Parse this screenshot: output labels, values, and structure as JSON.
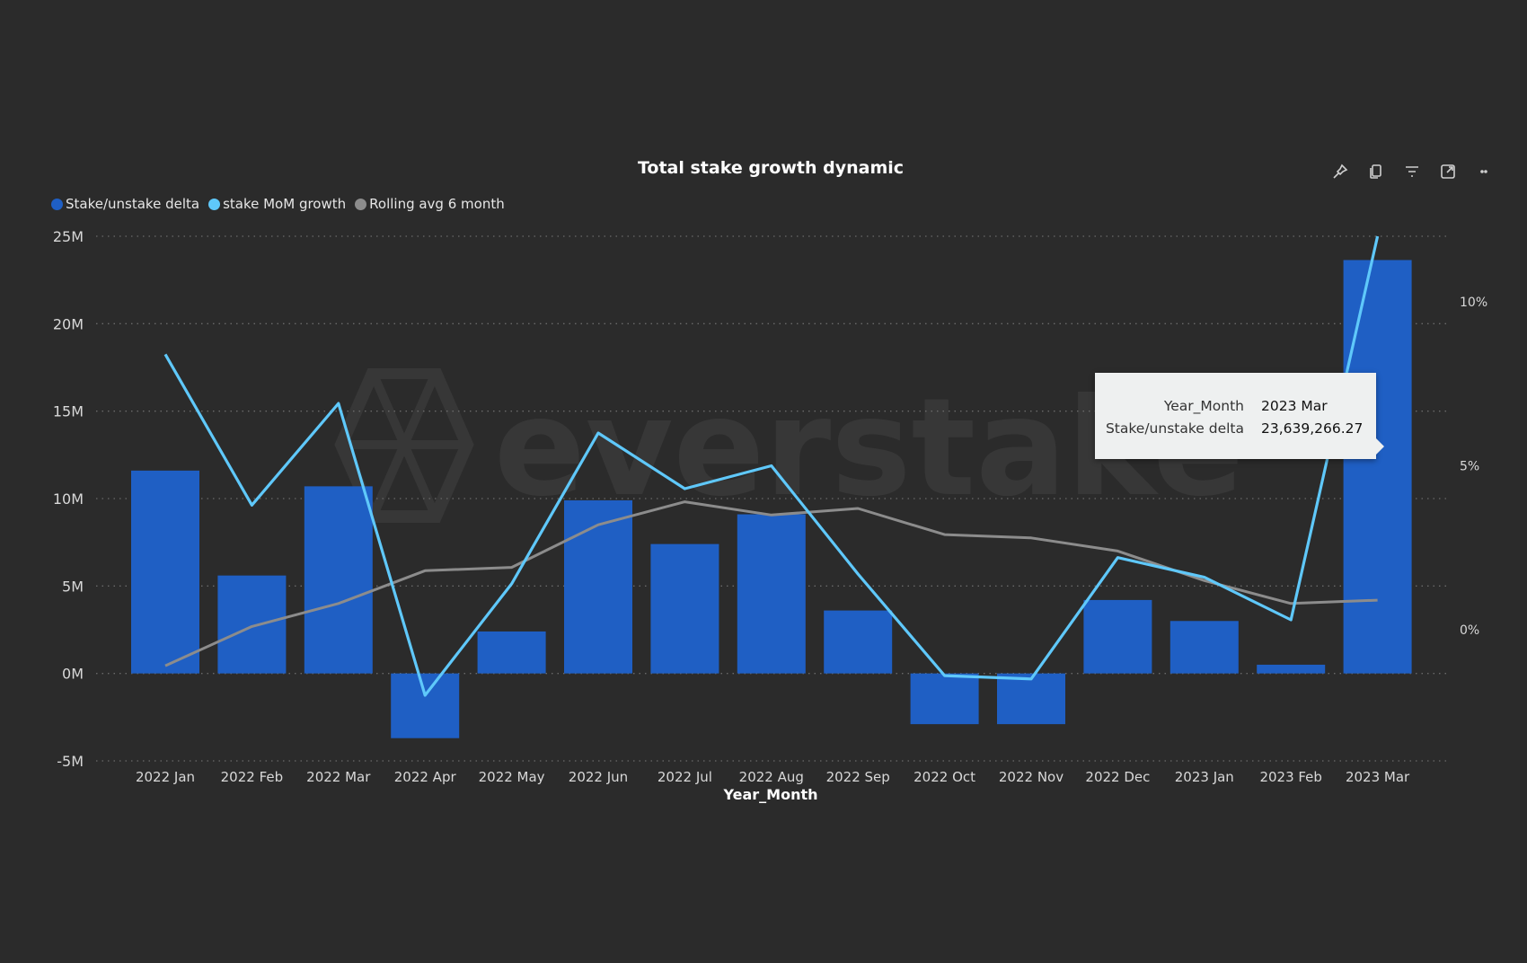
{
  "chart_title": "Total stake growth dynamic",
  "watermark_text": "everstake",
  "legend": [
    {
      "label": "Stake/unstake delta",
      "color": "#1f5fc4"
    },
    {
      "label": "stake MoM growth",
      "color": "#5fc8fa"
    },
    {
      "label": "Rolling avg 6 month",
      "color": "#8c8c8c"
    }
  ],
  "toolbar": {
    "icons": [
      "pin-icon",
      "copy-icon",
      "filter-icon",
      "focus-mode-icon",
      "more-options-icon"
    ]
  },
  "tooltip": {
    "key1": "Year_Month",
    "val1": "2023 Mar",
    "key2": "Stake/unstake delta",
    "val2": "23,639,266.27"
  },
  "chart_data": {
    "type": "bar",
    "title": "Total stake growth dynamic",
    "xlabel": "Year_Month",
    "categories": [
      "2022 Jan",
      "2022 Feb",
      "2022 Mar",
      "2022 Apr",
      "2022 May",
      "2022 Jun",
      "2022 Jul",
      "2022 Aug",
      "2022 Sep",
      "2022 Oct",
      "2022 Nov",
      "2022 Dec",
      "2023 Jan",
      "2023 Feb",
      "2023 Mar"
    ],
    "y_left": {
      "ticks": [
        "25M",
        "20M",
        "15M",
        "10M",
        "5M",
        "0M",
        "-5M"
      ],
      "tick_values": [
        25,
        20,
        15,
        10,
        5,
        0,
        -5
      ],
      "range": [
        -5,
        25
      ],
      "unit": "M"
    },
    "y_right": {
      "ticks": [
        "10%",
        "5%",
        "0%"
      ],
      "tick_values": [
        10,
        5,
        0
      ],
      "range": [
        -4,
        12
      ]
    },
    "series": [
      {
        "name": "Stake/unstake delta",
        "type": "bar",
        "axis": "left",
        "color": "#1f5fc4",
        "values": [
          11.6,
          5.6,
          10.7,
          -3.7,
          2.4,
          9.9,
          7.4,
          9.1,
          3.6,
          -2.9,
          -2.9,
          4.2,
          3.0,
          0.5,
          23.64
        ]
      },
      {
        "name": "stake MoM growth",
        "type": "line",
        "axis": "right",
        "color": "#5fc8fa",
        "values": [
          8.4,
          3.8,
          6.9,
          -2.0,
          1.4,
          6.0,
          4.3,
          5.0,
          1.7,
          -1.4,
          -1.5,
          2.2,
          1.6,
          0.3,
          12.0
        ]
      },
      {
        "name": "Rolling avg 6 month",
        "type": "line",
        "axis": "right",
        "color": "#8c8c8c",
        "values": [
          -1.1,
          0.1,
          0.8,
          1.8,
          1.9,
          3.2,
          3.9,
          3.5,
          3.7,
          2.9,
          2.8,
          2.4,
          1.5,
          0.8,
          0.9
        ]
      }
    ],
    "grid": true,
    "legend_position": "top-left"
  }
}
